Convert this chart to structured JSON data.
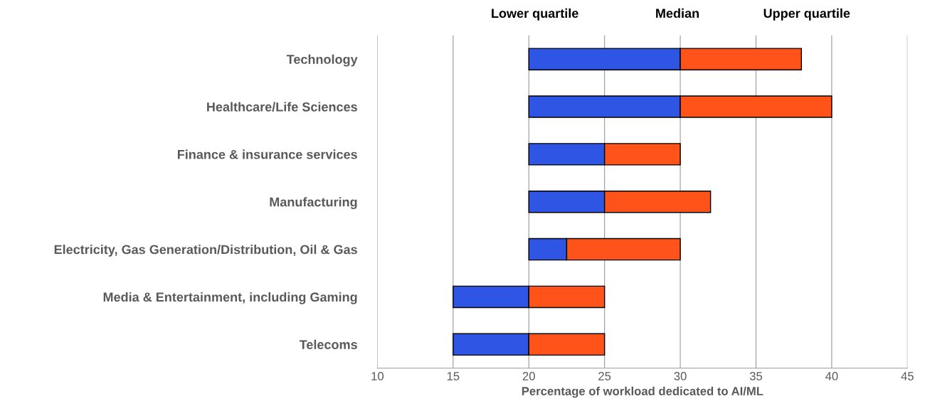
{
  "chart_data": {
    "type": "bar",
    "orientation": "horizontal",
    "categories": [
      "Technology",
      "Healthcare/Life Sciences",
      "Finance & insurance services",
      "Manufacturing",
      "Electricity, Gas Generation/Distribution, Oil & Gas",
      "Media & Entertainment, including Gaming",
      "Telecoms"
    ],
    "series": [
      {
        "color": "#2f55e4",
        "base": [
          20,
          20,
          20,
          20,
          20,
          15,
          15
        ],
        "values": [
          10,
          10,
          5,
          5,
          2.5,
          5,
          5
        ]
      },
      {
        "color": "#ff531a",
        "base": [
          30,
          30,
          25,
          25,
          22.5,
          20,
          20
        ],
        "values": [
          8,
          10,
          5,
          7,
          7.5,
          5,
          5
        ]
      }
    ],
    "xlabel": "Percentage of workload dedicated to AI/ML",
    "xlim": [
      10,
      45
    ],
    "xticks": [
      10,
      15,
      20,
      25,
      30,
      35,
      40,
      45
    ],
    "grid": "x",
    "annotations": [
      "Lower quartile",
      "Median",
      "Upper quartile"
    ]
  }
}
